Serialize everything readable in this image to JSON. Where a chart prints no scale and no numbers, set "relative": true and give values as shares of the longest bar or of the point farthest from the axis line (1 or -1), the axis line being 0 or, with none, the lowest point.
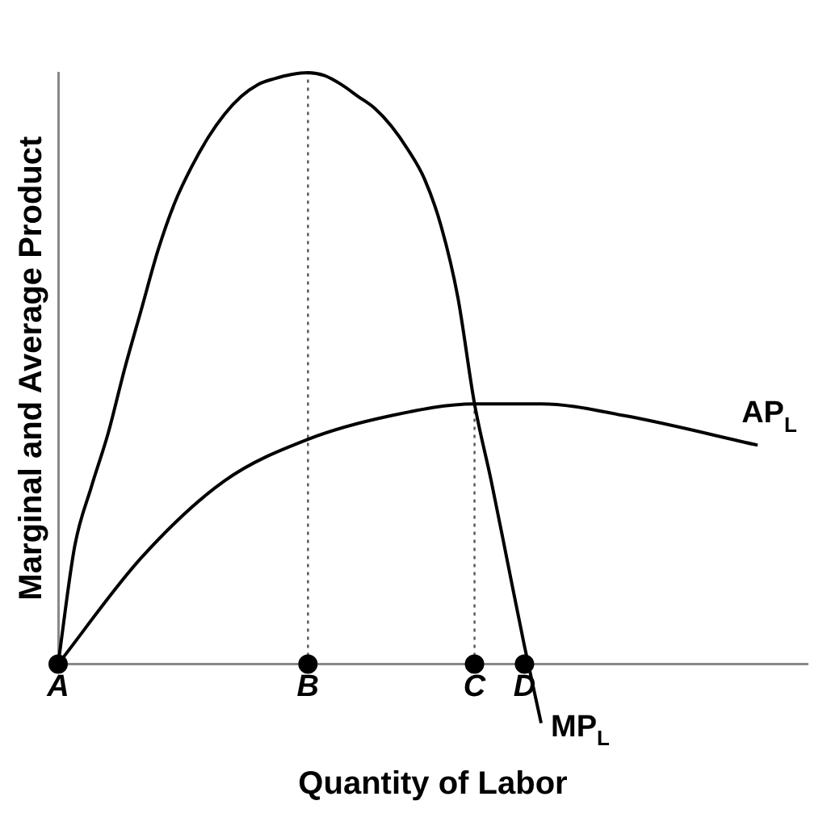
{
  "chart_data": {
    "type": "line",
    "relative": true,
    "xlabel": "Quantity of Labor",
    "ylabel": "Marginal and Average Product",
    "categories": [
      "A",
      null,
      null,
      null,
      null,
      null,
      null,
      null,
      null,
      null,
      null,
      null,
      null,
      null,
      null,
      "B",
      null,
      null,
      null,
      null,
      null,
      null,
      null,
      null,
      null,
      "C",
      null,
      null,
      "D",
      null,
      null,
      null,
      null,
      null,
      null,
      null,
      null,
      null,
      null,
      null,
      null,
      null,
      null,
      null,
      null,
      null
    ],
    "series": [
      {
        "name": "MP$_{L}$",
        "color": "#000000",
        "values": [
          0,
          0.2,
          0.3,
          0.39,
          0.5,
          0.6,
          0.7,
          0.78,
          0.84,
          0.89,
          0.93,
          0.96,
          0.98,
          0.99,
          0.997,
          1,
          0.995,
          0.98,
          0.96,
          0.94,
          0.91,
          0.87,
          0.82,
          0.74,
          0.62,
          0.44,
          0.31,
          0.17,
          0.03,
          -0.1,
          null,
          null,
          null,
          null,
          null,
          null,
          null,
          null,
          null,
          null,
          null,
          null,
          null,
          null,
          null,
          null
        ]
      },
      {
        "name": "AP$_{L}$",
        "color": "#000000",
        "values": [
          0,
          null,
          null,
          null,
          null,
          0.18,
          null,
          null,
          null,
          null,
          0.31,
          null,
          null,
          null,
          null,
          0.38,
          null,
          null,
          null,
          null,
          0.42,
          null,
          null,
          null,
          null,
          0.44,
          null,
          null,
          null,
          0.44,
          null,
          null,
          null,
          null,
          0.42,
          null,
          null,
          null,
          null,
          null,
          null,
          null,
          0.37,
          null,
          null,
          null
        ]
      },
      {
        "type": "scatter",
        "color": "#000000",
        "marker": "circle",
        "x": [
          "A",
          "B",
          "C",
          "D"
        ],
        "values": [
          0,
          0,
          0,
          0
        ]
      }
    ],
    "ref_lines": [
      {
        "axis": "x",
        "value": "B",
        "line_style": "dotted",
        "color": "#555555"
      },
      {
        "axis": "x",
        "value": "C",
        "line_style": "dotted",
        "color": "#555555"
      }
    ],
    "marker": "none",
    "line_style": "solid",
    "legend": false,
    "grid": false
  }
}
